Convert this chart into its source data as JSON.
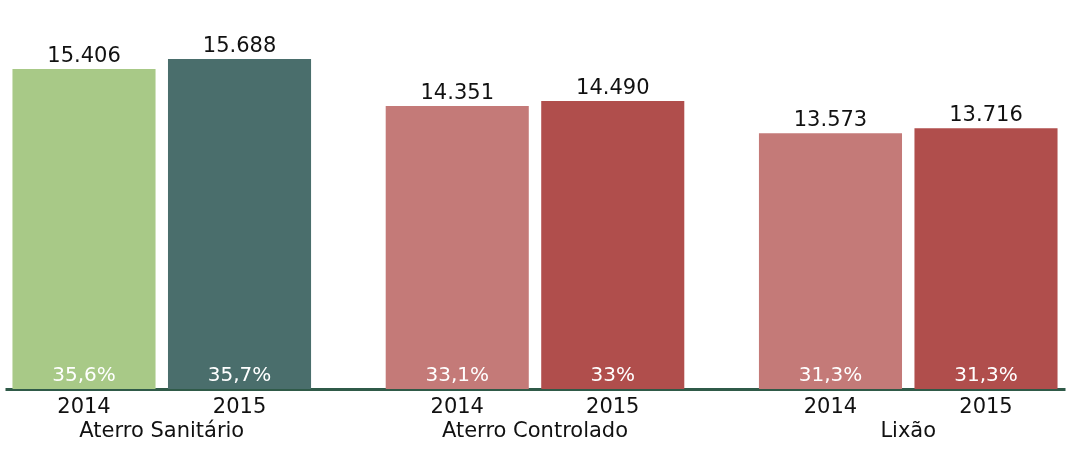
{
  "chart_data": {
    "type": "bar",
    "categories": [
      "Aterro Sanitário",
      "Aterro Controlado",
      "Lixão"
    ],
    "ylim": [
      6300,
      15688
    ],
    "series": [
      {
        "name": "2014",
        "colors": [
          "#a8c987",
          "#c47a78",
          "#c47a78"
        ],
        "values": [
          15406,
          14351,
          13573
        ],
        "value_labels": [
          "15.406",
          "14.351",
          "13.573"
        ]
      },
      {
        "name": "2015",
        "colors": [
          "#4a6e6c",
          "#b04e4c",
          "#b04e4c"
        ],
        "values": [
          15688,
          14490,
          13716
        ],
        "value_labels": [
          "15.688",
          "14.490",
          "13.716"
        ]
      }
    ],
    "annotations": [
      "35,6%",
      "35,7%",
      "33,1%",
      "33%",
      "31,3%",
      "31,3%"
    ]
  }
}
